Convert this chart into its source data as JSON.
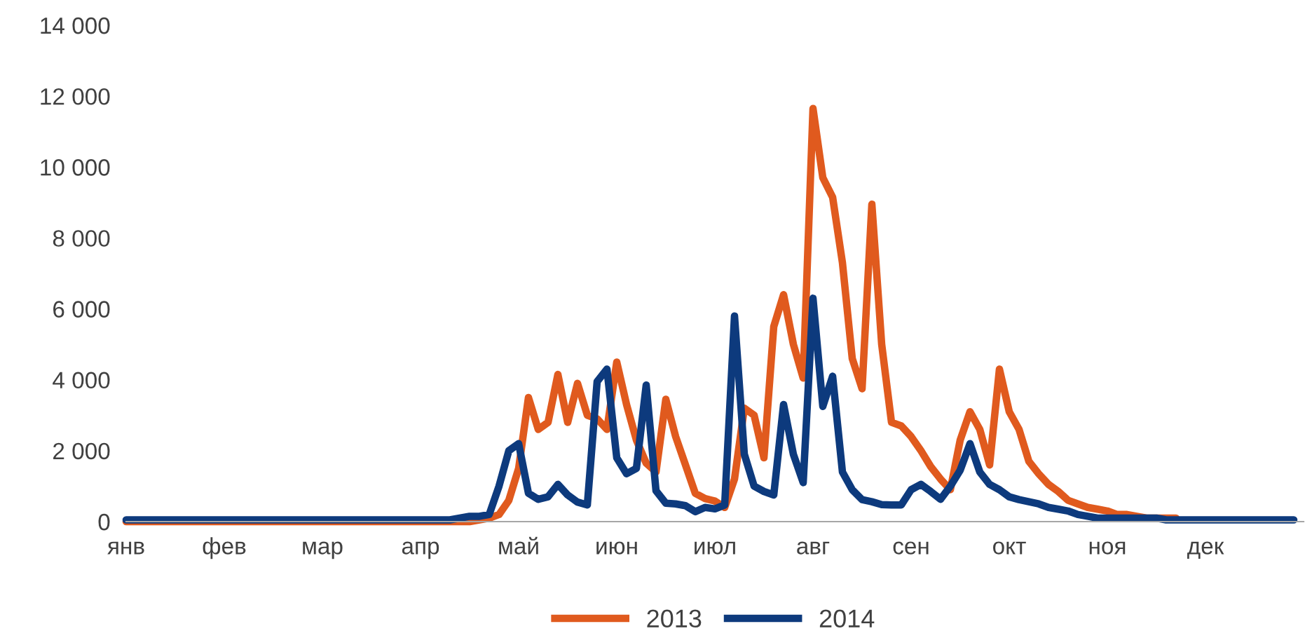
{
  "chart_data": {
    "type": "line",
    "ylim": [
      0,
      14000
    ],
    "categories": [
      "янв",
      null,
      null,
      null,
      null,
      null,
      null,
      null,
      null,
      null,
      "фев",
      null,
      null,
      null,
      null,
      null,
      null,
      null,
      null,
      null,
      "мар",
      null,
      null,
      null,
      null,
      null,
      null,
      null,
      null,
      null,
      "апр",
      null,
      null,
      null,
      null,
      null,
      null,
      null,
      null,
      null,
      "май",
      null,
      null,
      null,
      null,
      null,
      null,
      null,
      null,
      null,
      "июн",
      null,
      null,
      null,
      null,
      null,
      null,
      null,
      null,
      null,
      "июл",
      null,
      null,
      null,
      null,
      null,
      null,
      null,
      null,
      null,
      "авг",
      null,
      null,
      null,
      null,
      null,
      null,
      null,
      null,
      null,
      "сен",
      null,
      null,
      null,
      null,
      null,
      null,
      null,
      null,
      null,
      "окт",
      null,
      null,
      null,
      null,
      null,
      null,
      null,
      null,
      null,
      "ноя",
      null,
      null,
      null,
      null,
      null,
      null,
      null,
      null,
      null,
      "дек",
      null,
      null,
      null,
      null,
      null,
      null,
      null,
      null,
      null
    ],
    "yticks": [
      {
        "value": 0,
        "label": "0"
      },
      {
        "value": 2000,
        "label": "2 000"
      },
      {
        "value": 4000,
        "label": "4 000"
      },
      {
        "value": 6000,
        "label": "6 000"
      },
      {
        "value": 8000,
        "label": "8 000"
      },
      {
        "value": 10000,
        "label": "10 000"
      },
      {
        "value": 12000,
        "label": "12 000"
      },
      {
        "value": 14000,
        "label": "14 000"
      }
    ],
    "grid": false,
    "legend": "bottom",
    "marker": "none",
    "line_style": "solid",
    "series": [
      {
        "name": "2013",
        "color": "#e05a1e",
        "values": [
          0,
          0,
          0,
          0,
          0,
          0,
          0,
          0,
          0,
          0,
          0,
          0,
          0,
          0,
          0,
          0,
          0,
          0,
          0,
          0,
          0,
          0,
          0,
          0,
          0,
          0,
          0,
          0,
          0,
          0,
          0,
          0,
          0,
          0,
          0,
          0,
          50,
          100,
          200,
          600,
          1500,
          3500,
          2600,
          2800,
          4150,
          2800,
          3900,
          3000,
          2900,
          2600,
          4500,
          3300,
          2300,
          1650,
          1400,
          3450,
          2400,
          1600,
          800,
          650,
          580,
          400,
          1200,
          3200,
          3000,
          1800,
          5500,
          6400,
          5000,
          4050,
          11650,
          9700,
          9150,
          7300,
          4600,
          3750,
          8950,
          5000,
          2800,
          2700,
          2400,
          2000,
          1550,
          1200,
          900,
          2300,
          3100,
          2600,
          1600,
          4300,
          3100,
          2600,
          1700,
          1350,
          1050,
          850,
          600,
          500,
          400,
          350,
          300,
          200,
          200,
          150,
          100,
          100,
          100,
          100,
          null,
          null,
          null,
          null,
          null,
          null,
          null,
          null,
          null,
          null,
          null,
          null
        ]
      },
      {
        "name": "2014",
        "color": "#0d3a7d",
        "values": [
          50,
          50,
          50,
          50,
          50,
          50,
          50,
          50,
          50,
          50,
          50,
          50,
          50,
          50,
          50,
          50,
          50,
          50,
          50,
          50,
          50,
          50,
          50,
          50,
          50,
          50,
          50,
          50,
          50,
          50,
          50,
          50,
          50,
          50,
          100,
          150,
          150,
          200,
          1000,
          2000,
          2200,
          800,
          630,
          700,
          1050,
          750,
          550,
          470,
          3950,
          4300,
          1800,
          1350,
          1500,
          3850,
          870,
          520,
          500,
          450,
          280,
          400,
          360,
          470,
          5800,
          1900,
          1000,
          850,
          750,
          3300,
          1900,
          1100,
          6300,
          3250,
          4100,
          1400,
          900,
          620,
          560,
          480,
          470,
          470,
          900,
          1050,
          850,
          630,
          1000,
          1450,
          2200,
          1400,
          1050,
          900,
          700,
          620,
          560,
          500,
          400,
          350,
          300,
          200,
          150,
          100,
          100,
          100,
          100,
          100,
          100,
          100,
          50,
          50,
          50,
          50,
          50,
          50,
          50,
          50,
          50,
          50,
          50,
          50,
          50,
          50
        ]
      }
    ]
  }
}
